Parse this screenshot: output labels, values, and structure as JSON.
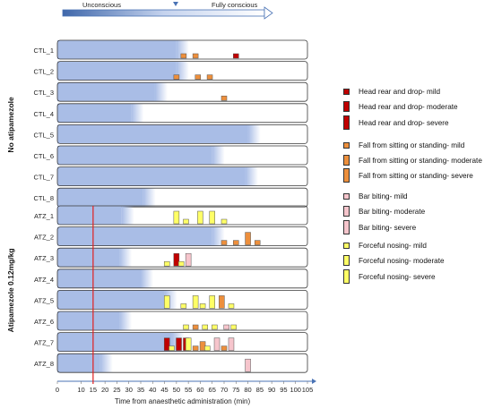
{
  "chart_data": {
    "type": "bar",
    "top_arrow": {
      "left_label": "Unconscious",
      "right_label": "Fully conscious"
    },
    "xlabel": "Time from anaesthetic administration (min)",
    "xlim": [
      0,
      105
    ],
    "xticks": [
      "0",
      "10",
      "15",
      "20",
      "25",
      "30",
      "35",
      "40",
      "45",
      "50",
      "55",
      "60",
      "65",
      "70",
      "75",
      "80",
      "85",
      "90",
      "95",
      "100",
      "105"
    ],
    "red_line_x": 15,
    "groups": [
      {
        "label": "No atipamezole",
        "rows": [
          "CTL_1",
          "CTL_2",
          "CTL_3",
          "CTL_4",
          "CTL_5",
          "CTL_6",
          "CTL_7",
          "CTL_8"
        ]
      },
      {
        "label": "Atipamezole 0.12mg/kg",
        "rows": [
          "ATZ_1",
          "ATZ_2",
          "ATZ_3",
          "ATZ_4",
          "ATZ_5",
          "ATZ_6",
          "ATZ_7",
          "ATZ_8"
        ]
      }
    ],
    "unconscious_until": {
      "CTL_1": 50,
      "CTL_2": 50,
      "CTL_3": 41,
      "CTL_4": 31,
      "CTL_5": 80,
      "CTL_6": 65,
      "CTL_7": 79,
      "CTL_8": 36,
      "ATZ_1": 27,
      "ATZ_2": 65,
      "ATZ_3": 26,
      "ATZ_4": 35,
      "ATZ_5": 45,
      "ATZ_6": 26,
      "ATZ_7": 48,
      "ATZ_8": 18
    },
    "legend": [
      {
        "label": "Head rear and drop- mild",
        "category": "head",
        "severity": 1
      },
      {
        "label": "Head rear and drop- moderate",
        "category": "head",
        "severity": 2
      },
      {
        "label": "Head rear and drop- severe",
        "category": "head",
        "severity": 3
      },
      {
        "label": "Fall from sitting or standing- mild",
        "category": "fall",
        "severity": 1
      },
      {
        "label": "Fall from sitting or standing- moderate",
        "category": "fall",
        "severity": 2
      },
      {
        "label": "Fall from sitting or standing- severe",
        "category": "fall",
        "severity": 3
      },
      {
        "label": "Bar biting- mild",
        "category": "bar",
        "severity": 1
      },
      {
        "label": "Bar biting- moderate",
        "category": "bar",
        "severity": 2
      },
      {
        "label": "Bar biting- severe",
        "category": "bar",
        "severity": 3
      },
      {
        "label": "Forceful nosing- mild",
        "category": "nose",
        "severity": 1
      },
      {
        "label": "Forceful nosing- moderate",
        "category": "nose",
        "severity": 2
      },
      {
        "label": "Forceful nosing- severe",
        "category": "nose",
        "severity": 3
      }
    ],
    "colors": {
      "head": "#c00000",
      "fall": "#ed8f3c",
      "bar": "#f6c5cc",
      "nose": "#ffff66",
      "fill": "#a9bde6",
      "red_line": "#e02020",
      "arrow": "#4a73b5"
    },
    "events": [
      {
        "row": "CTL_1",
        "t": 53,
        "c": "fall",
        "s": 1
      },
      {
        "row": "CTL_1",
        "t": 58,
        "c": "fall",
        "s": 1
      },
      {
        "row": "CTL_1",
        "t": 75,
        "c": "head",
        "s": 1
      },
      {
        "row": "CTL_2",
        "t": 50,
        "c": "fall",
        "s": 1
      },
      {
        "row": "CTL_2",
        "t": 59,
        "c": "fall",
        "s": 1
      },
      {
        "row": "CTL_2",
        "t": 64,
        "c": "fall",
        "s": 1
      },
      {
        "row": "CTL_3",
        "t": 70,
        "c": "fall",
        "s": 1
      },
      {
        "row": "ATZ_1",
        "t": 50,
        "c": "nose",
        "s": 3
      },
      {
        "row": "ATZ_1",
        "t": 54,
        "c": "nose",
        "s": 1
      },
      {
        "row": "ATZ_1",
        "t": 60,
        "c": "nose",
        "s": 3
      },
      {
        "row": "ATZ_1",
        "t": 65,
        "c": "nose",
        "s": 3
      },
      {
        "row": "ATZ_1",
        "t": 70,
        "c": "nose",
        "s": 1
      },
      {
        "row": "ATZ_2",
        "t": 70,
        "c": "fall",
        "s": 1
      },
      {
        "row": "ATZ_2",
        "t": 75,
        "c": "fall",
        "s": 1
      },
      {
        "row": "ATZ_2",
        "t": 80,
        "c": "fall",
        "s": 3
      },
      {
        "row": "ATZ_2",
        "t": 84,
        "c": "fall",
        "s": 1
      },
      {
        "row": "ATZ_3",
        "t": 46,
        "c": "nose",
        "s": 1
      },
      {
        "row": "ATZ_3",
        "t": 50,
        "c": "head",
        "s": 3
      },
      {
        "row": "ATZ_3",
        "t": 52,
        "c": "nose",
        "s": 1
      },
      {
        "row": "ATZ_3",
        "t": 55,
        "c": "bar",
        "s": 3
      },
      {
        "row": "ATZ_5",
        "t": 46,
        "c": "nose",
        "s": 3
      },
      {
        "row": "ATZ_5",
        "t": 53,
        "c": "nose",
        "s": 1
      },
      {
        "row": "ATZ_5",
        "t": 58,
        "c": "nose",
        "s": 3
      },
      {
        "row": "ATZ_5",
        "t": 61,
        "c": "nose",
        "s": 1
      },
      {
        "row": "ATZ_5",
        "t": 65,
        "c": "nose",
        "s": 3
      },
      {
        "row": "ATZ_5",
        "t": 69,
        "c": "fall",
        "s": 3
      },
      {
        "row": "ATZ_5",
        "t": 73,
        "c": "nose",
        "s": 1
      },
      {
        "row": "ATZ_6",
        "t": 54,
        "c": "nose",
        "s": 1
      },
      {
        "row": "ATZ_6",
        "t": 58,
        "c": "fall",
        "s": 1
      },
      {
        "row": "ATZ_6",
        "t": 62,
        "c": "nose",
        "s": 1
      },
      {
        "row": "ATZ_6",
        "t": 66,
        "c": "nose",
        "s": 1
      },
      {
        "row": "ATZ_6",
        "t": 71,
        "c": "bar",
        "s": 1
      },
      {
        "row": "ATZ_6",
        "t": 74,
        "c": "nose",
        "s": 1
      },
      {
        "row": "ATZ_7",
        "t": 46,
        "c": "head",
        "s": 3
      },
      {
        "row": "ATZ_7",
        "t": 48,
        "c": "nose",
        "s": 1
      },
      {
        "row": "ATZ_7",
        "t": 51,
        "c": "head",
        "s": 3
      },
      {
        "row": "ATZ_7",
        "t": 54,
        "c": "head",
        "s": 3
      },
      {
        "row": "ATZ_7",
        "t": 55,
        "c": "nose",
        "s": 3
      },
      {
        "row": "ATZ_7",
        "t": 58,
        "c": "fall",
        "s": 1
      },
      {
        "row": "ATZ_7",
        "t": 61,
        "c": "fall",
        "s": 2
      },
      {
        "row": "ATZ_7",
        "t": 63,
        "c": "nose",
        "s": 1
      },
      {
        "row": "ATZ_7",
        "t": 67,
        "c": "bar",
        "s": 3
      },
      {
        "row": "ATZ_7",
        "t": 70,
        "c": "fall",
        "s": 1
      },
      {
        "row": "ATZ_7",
        "t": 73,
        "c": "bar",
        "s": 3
      },
      {
        "row": "ATZ_8",
        "t": 80,
        "c": "bar",
        "s": 3
      }
    ]
  }
}
